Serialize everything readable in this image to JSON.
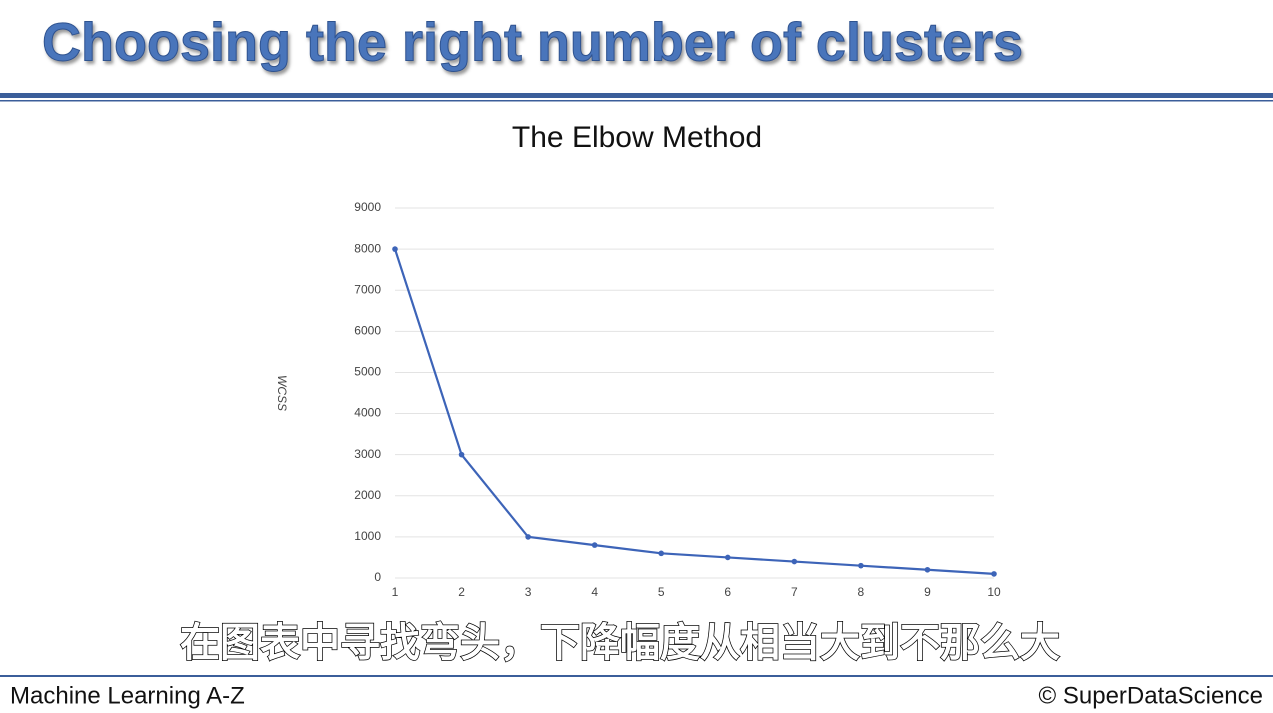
{
  "slide": {
    "title": "Choosing the right number of clusters",
    "caption": "在图表中寻找弯头，下降幅度从相当大到不那么大",
    "footer_left": "Machine Learning A-Z",
    "footer_right": "© SuperDataScience"
  },
  "chart_data": {
    "type": "line",
    "title": "The Elbow Method",
    "y_label": "WCSS",
    "x": [
      1,
      2,
      3,
      4,
      5,
      6,
      7,
      8,
      9,
      10
    ],
    "values": [
      8000,
      3000,
      1000,
      800,
      600,
      500,
      400,
      300,
      200,
      100
    ],
    "color": "#3d64b8",
    "xlim": [
      1,
      10
    ],
    "xticks": [
      1,
      2,
      3,
      4,
      5,
      6,
      7,
      8,
      9,
      10
    ],
    "ylim": [
      0,
      9000
    ],
    "yticks": [
      0,
      1000,
      2000,
      3000,
      4000,
      5000,
      6000,
      7000,
      8000,
      9000
    ],
    "grid": true
  }
}
